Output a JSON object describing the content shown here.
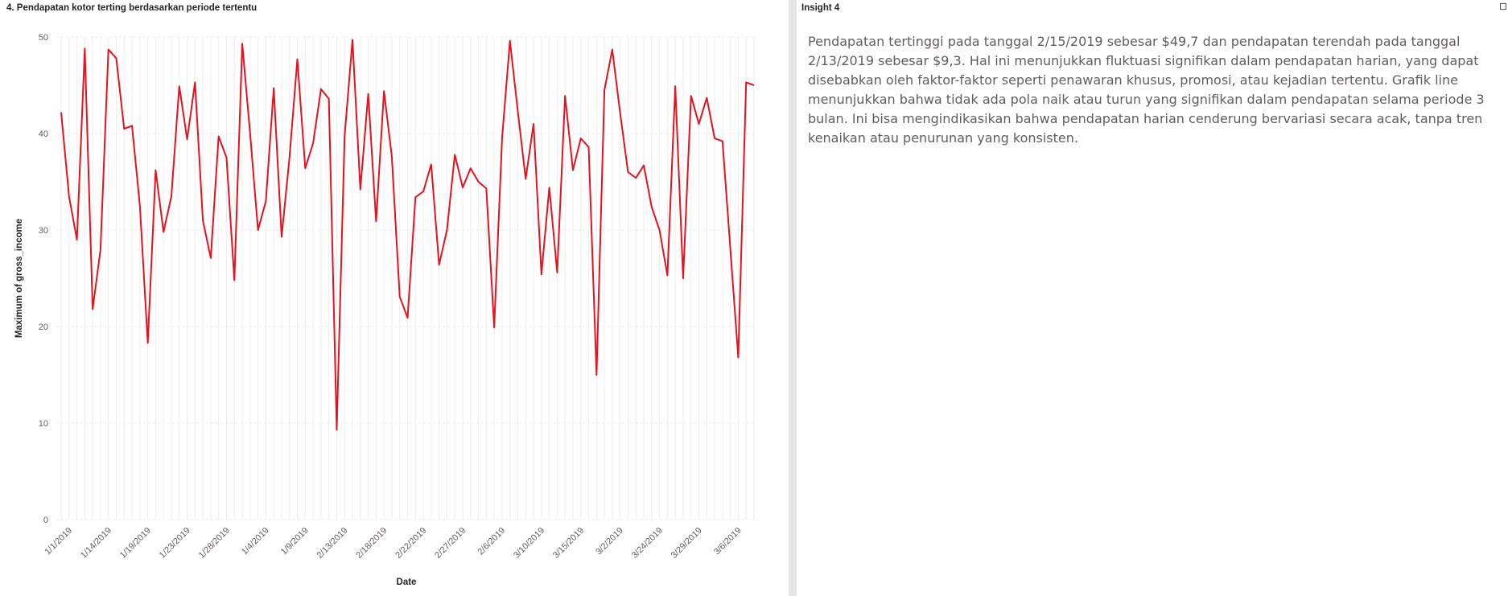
{
  "left_panel": {
    "title": "4. Pendapatan kotor terting berdasarkan periode tertentu"
  },
  "right_panel": {
    "title": "Insight 4",
    "text": "Pendapatan tertinggi pada tanggal 2/15/2019 sebesar $49,7 dan pendapatan terendah pada tanggal 2/13/2019 sebesar $9,3. Hal ini menunjukkan fluktuasi signifikan dalam pendapatan harian, yang dapat disebabkan oleh faktor-faktor seperti penawaran khusus, promosi, atau kejadian tertentu. Grafik line menunjukkan bahwa tidak ada pola naik atau turun yang signifikan dalam pendapatan selama periode 3 bulan. Ini bisa mengindikasikan bahwa pendapatan harian cenderung bervariasi secara acak, tanpa tren kenaikan atau penurunan yang konsisten."
  },
  "chart_data": {
    "type": "line",
    "xlabel": "Date",
    "ylabel": "Maximum of gross_income",
    "ylim": [
      0,
      50
    ],
    "yticks": [
      0,
      10,
      20,
      30,
      40,
      50
    ],
    "grid": true,
    "line_color": "#e8111e",
    "grid_color": "#eeeeee",
    "x_tick_labels": [
      "1/1/2019",
      "1/14/2019",
      "1/19/2019",
      "1/23/2019",
      "1/28/2019",
      "1/4/2019",
      "1/9/2019",
      "2/13/2019",
      "2/18/2019",
      "2/22/2019",
      "2/27/2019",
      "2/6/2019",
      "3/10/2019",
      "3/15/2019",
      "3/2/2019",
      "3/24/2019",
      "3/29/2019",
      "3/6/2019"
    ],
    "x_tick_label_index": [
      0,
      5,
      10,
      15,
      20,
      25,
      30,
      35,
      40,
      45,
      50,
      55,
      60,
      65,
      70,
      75,
      80,
      85
    ],
    "values": [
      42.2,
      33.5,
      29,
      48.8,
      21.8,
      28,
      48.7,
      47.8,
      40.5,
      40.8,
      32.5,
      18.3,
      36.2,
      29.8,
      33.5,
      44.9,
      39.4,
      45.3,
      31,
      27.1,
      39.7,
      37.5,
      24.8,
      49.3,
      40,
      30,
      33,
      44.7,
      29.3,
      37.5,
      47.7,
      36.4,
      39,
      44.6,
      43.6,
      9.3,
      39.7,
      49.7,
      34.2,
      44.1,
      30.9,
      44.4,
      37.6,
      23.1,
      20.9,
      33.4,
      34,
      36.8,
      26.4,
      30,
      37.8,
      34.4,
      36.4,
      35,
      34.3,
      19.9,
      39.5,
      49.6,
      42.3,
      35.3,
      41,
      25.4,
      34.4,
      25.6,
      43.9,
      36.2,
      39.5,
      38.6,
      15,
      44.5,
      48.7,
      42.1,
      36,
      35.4,
      36.7,
      32.4,
      30,
      25.3,
      44.9,
      25,
      43.9,
      41,
      43.7,
      39.5,
      39.2,
      28,
      16.8,
      45.3,
      45
    ]
  }
}
